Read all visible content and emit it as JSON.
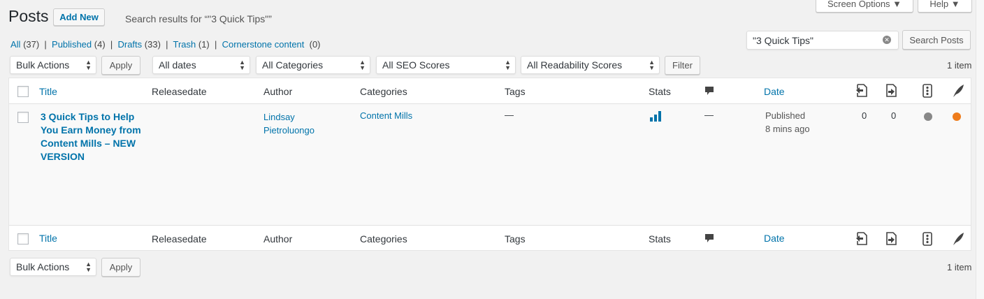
{
  "header": {
    "title": "Posts",
    "add_new": "Add New",
    "search_results": "Search results for “\"3 Quick Tips\"”",
    "screen_options": "Screen Options ▼",
    "help": "Help ▼"
  },
  "filters": [
    {
      "label": "All",
      "count": "(37)"
    },
    {
      "label": "Published",
      "count": "(4)"
    },
    {
      "label": "Drafts",
      "count": "(33)"
    },
    {
      "label": "Trash",
      "count": "(1)"
    },
    {
      "label": "Cornerstone content",
      "count": "(0)"
    }
  ],
  "search": {
    "value": "\"3 Quick Tips\"",
    "button": "Search Posts"
  },
  "toolbar": {
    "bulk_actions": "Bulk Actions",
    "apply": "Apply",
    "dates": "All dates",
    "categories": "All Categories",
    "seo": "All SEO Scores",
    "readability": "All Readability Scores",
    "filter": "Filter",
    "count": "1 item"
  },
  "columns": {
    "title": "Title",
    "releasedate": "Releasedate",
    "author": "Author",
    "categories": "Categories",
    "tags": "Tags",
    "stats": "Stats",
    "date": "Date"
  },
  "rows": [
    {
      "title": "3 Quick Tips to Help You Earn Money from Content Mills – NEW VERSION",
      "author": "Lindsay Pietroluongo",
      "categories": "Content Mills",
      "tags": "—",
      "comments": "—",
      "date_status": "Published",
      "date_ago": "8 mins ago",
      "inbound_links": "0",
      "outbound_links": "0",
      "seo_color": "#888888",
      "readability_color": "#ee7c1b"
    }
  ],
  "bottom": {
    "bulk_actions": "Bulk Actions",
    "apply": "Apply",
    "count": "1 item"
  }
}
